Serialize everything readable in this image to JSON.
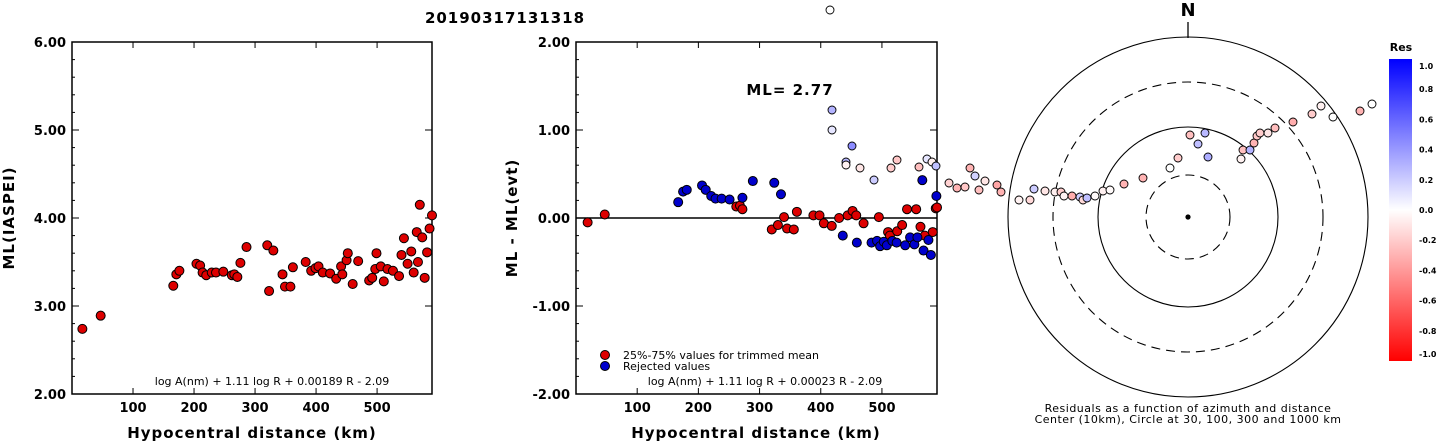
{
  "page_title": "20190317131318",
  "colors": {
    "accepted": "#dd0000",
    "rejected": "#0000cc",
    "outline": "#000000"
  },
  "chart_data": [
    {
      "type": "scatter",
      "xlabel": "Hypocentral distance (km)",
      "ylabel": "ML(IASPEI)",
      "xlim": [
        0,
        590
      ],
      "ylim": [
        2.0,
        6.0
      ],
      "xticks": [
        100,
        200,
        300,
        400,
        500
      ],
      "yticks": [
        "2.00",
        "3.00",
        "4.00",
        "5.00",
        "6.00"
      ],
      "ytick_values": [
        2,
        3,
        4,
        5,
        6
      ],
      "formula": "log A(nm) + 1.11 log R + 0.00189 R - 2.09",
      "points": [
        [
          17,
          2.74
        ],
        [
          47,
          2.89
        ],
        [
          166,
          3.23
        ],
        [
          171,
          3.36
        ],
        [
          176,
          3.4
        ],
        [
          204,
          3.48
        ],
        [
          210,
          3.46
        ],
        [
          214,
          3.38
        ],
        [
          220,
          3.35
        ],
        [
          229,
          3.38
        ],
        [
          236,
          3.38
        ],
        [
          248,
          3.39
        ],
        [
          262,
          3.35
        ],
        [
          266,
          3.36
        ],
        [
          271,
          3.33
        ],
        [
          276,
          3.49
        ],
        [
          286,
          3.67
        ],
        [
          320,
          3.69
        ],
        [
          323,
          3.17
        ],
        [
          330,
          3.63
        ],
        [
          345,
          3.36
        ],
        [
          349,
          3.22
        ],
        [
          358,
          3.22
        ],
        [
          362,
          3.44
        ],
        [
          383,
          3.5
        ],
        [
          392,
          3.4
        ],
        [
          399,
          3.43
        ],
        [
          404,
          3.45
        ],
        [
          411,
          3.38
        ],
        [
          423,
          3.37
        ],
        [
          433,
          3.31
        ],
        [
          441,
          3.45
        ],
        [
          443,
          3.36
        ],
        [
          450,
          3.52
        ],
        [
          452,
          3.6
        ],
        [
          460,
          3.25
        ],
        [
          469,
          3.51
        ],
        [
          487,
          3.29
        ],
        [
          492,
          3.32
        ],
        [
          497,
          3.42
        ],
        [
          499,
          3.6
        ],
        [
          506,
          3.45
        ],
        [
          511,
          3.28
        ],
        [
          517,
          3.42
        ],
        [
          526,
          3.4
        ],
        [
          536,
          3.34
        ],
        [
          540,
          3.58
        ],
        [
          544,
          3.77
        ],
        [
          550,
          3.48
        ],
        [
          556,
          3.62
        ],
        [
          560,
          3.38
        ],
        [
          565,
          3.84
        ],
        [
          567,
          3.5
        ],
        [
          570,
          4.15
        ],
        [
          574,
          3.78
        ],
        [
          578,
          3.32
        ],
        [
          582,
          3.61
        ],
        [
          586,
          3.88
        ],
        [
          590,
          4.03
        ]
      ]
    },
    {
      "type": "scatter",
      "xlabel": "Hypocentral distance (km)",
      "ylabel": "ML - ML(evt)",
      "xlim": [
        0,
        590
      ],
      "ylim": [
        -2.0,
        2.0
      ],
      "xticks": [
        100,
        200,
        300,
        400,
        500
      ],
      "yticks": [
        "-2.00",
        "-1.00",
        "0.00",
        "1.00",
        "2.00"
      ],
      "ytick_values": [
        -2,
        -1,
        0,
        1,
        2
      ],
      "ml_label": "ML= 2.77",
      "formula": "log A(nm) + 1.11 log R + 0.00023 R - 2.09",
      "legend": [
        "25%-75% values for trimmed mean",
        "Rejected values"
      ],
      "accepted": [
        [
          19,
          -0.05
        ],
        [
          47,
          0.04
        ],
        [
          262,
          0.13
        ],
        [
          268,
          0.14
        ],
        [
          272,
          0.1
        ],
        [
          320,
          -0.13
        ],
        [
          330,
          -0.08
        ],
        [
          340,
          0.01
        ],
        [
          345,
          -0.12
        ],
        [
          356,
          -0.13
        ],
        [
          361,
          0.07
        ],
        [
          388,
          0.03
        ],
        [
          398,
          0.03
        ],
        [
          405,
          -0.06
        ],
        [
          418,
          -0.09
        ],
        [
          430,
          0.0
        ],
        [
          444,
          0.03
        ],
        [
          452,
          0.08
        ],
        [
          458,
          0.03
        ],
        [
          470,
          -0.06
        ],
        [
          495,
          0.01
        ],
        [
          510,
          -0.16
        ],
        [
          513,
          -0.2
        ],
        [
          525,
          -0.15
        ],
        [
          533,
          -0.08
        ],
        [
          541,
          0.1
        ],
        [
          556,
          0.1
        ],
        [
          563,
          -0.1
        ],
        [
          570,
          -0.2
        ],
        [
          583,
          -0.16
        ],
        [
          588,
          0.11
        ],
        [
          590,
          0.12
        ]
      ],
      "rejected": [
        [
          167,
          0.18
        ],
        [
          175,
          0.3
        ],
        [
          181,
          0.32
        ],
        [
          206,
          0.37
        ],
        [
          212,
          0.32
        ],
        [
          221,
          0.25
        ],
        [
          228,
          0.22
        ],
        [
          238,
          0.22
        ],
        [
          251,
          0.21
        ],
        [
          272,
          0.23
        ],
        [
          289,
          0.42
        ],
        [
          324,
          0.4
        ],
        [
          335,
          0.27
        ],
        [
          436,
          -0.2
        ],
        [
          459,
          -0.28
        ],
        [
          483,
          -0.28
        ],
        [
          492,
          -0.26
        ],
        [
          497,
          -0.32
        ],
        [
          503,
          -0.27
        ],
        [
          508,
          -0.31
        ],
        [
          517,
          -0.26
        ],
        [
          524,
          -0.28
        ],
        [
          538,
          -0.31
        ],
        [
          546,
          -0.22
        ],
        [
          553,
          -0.3
        ],
        [
          558,
          -0.22
        ],
        [
          566,
          0.43
        ],
        [
          568,
          -0.37
        ],
        [
          576,
          -0.25
        ],
        [
          580,
          -0.42
        ],
        [
          589,
          0.25
        ]
      ]
    },
    {
      "type": "polar_scatter",
      "north_label": "N",
      "caption": [
        "Residuals as a function of azimuth and distance",
        "Center (10km), Circle at 30, 100, 300 and 1000 km"
      ],
      "colorbar_title": "Res",
      "colorbar_ticks": [
        "1.0",
        "0.8",
        "0.6",
        "0.4",
        "0.2",
        "0.0",
        "-0.2",
        "-0.4",
        "-0.6",
        "-0.8",
        "-1.0"
      ],
      "colorbar_tick_values": [
        1.0,
        0.8,
        0.6,
        0.4,
        0.2,
        0.0,
        -0.2,
        -0.4,
        -0.6,
        -0.8,
        -1.0
      ],
      "colormap": {
        "positive": "#0000ff",
        "zero": "#ffffff",
        "negative": "#ff0000"
      },
      "ring_distances_km": [
        30,
        100,
        300,
        1000
      ],
      "ring_styles": [
        "dashed",
        "solid",
        "dashed",
        "solid"
      ],
      "points": [
        [
          155,
          47,
          0.02
        ],
        [
          169,
          36,
          -0.02
        ],
        [
          330,
          110,
          0.0
        ],
        [
          332,
          210,
          0.3
        ],
        [
          332,
          230,
          0.1
        ],
        [
          346,
          262,
          0.28
        ],
        [
          346,
          265,
          -0.05
        ],
        [
          352,
          246,
          0.45
        ],
        [
          360,
          268,
          -0.1
        ],
        [
          374,
          280,
          0.2
        ],
        [
          391,
          268,
          -0.2
        ],
        [
          397,
          260,
          -0.22
        ],
        [
          419,
          267,
          -0.25
        ],
        [
          427,
          259,
          0.1
        ],
        [
          432,
          262,
          -0.06
        ],
        [
          436,
          266,
          0.25
        ],
        [
          449,
          283,
          -0.18
        ],
        [
          457,
          288,
          -0.3
        ],
        [
          465,
          287,
          -0.22
        ],
        [
          470,
          268,
          -0.3
        ],
        [
          475,
          276,
          0.18
        ],
        [
          479,
          290,
          -0.25
        ],
        [
          485,
          281,
          -0.1
        ],
        [
          497,
          285,
          -0.35
        ],
        [
          501,
          292,
          -0.3
        ],
        [
          519,
          300,
          -0.05
        ],
        [
          530,
          300,
          -0.15
        ],
        [
          534,
          289,
          0.2
        ],
        [
          545,
          291,
          -0.1
        ],
        [
          555,
          292,
          -0.06
        ],
        [
          561,
          292,
          -0.2
        ],
        [
          564,
          296,
          -0.05
        ],
        [
          572,
          296,
          -0.32
        ],
        [
          580,
          297,
          0.2
        ],
        [
          583,
          300,
          -0.15
        ],
        [
          587,
          298,
          0.25
        ],
        [
          595,
          296,
          -0.02
        ],
        [
          603,
          291,
          -0.06
        ],
        [
          610,
          290,
          -0.02
        ],
        [
          624,
          284,
          -0.3
        ],
        [
          643,
          278,
          -0.3
        ],
        [
          670,
          268,
          0.0
        ],
        [
          678,
          258,
          -0.2
        ],
        [
          690,
          235,
          -0.25
        ],
        [
          698,
          244,
          0.25
        ],
        [
          705,
          233,
          0.28
        ],
        [
          708,
          257,
          0.32
        ],
        [
          741,
          259,
          -0.05
        ],
        [
          743,
          250,
          -0.25
        ],
        [
          750,
          250,
          0.3
        ],
        [
          754,
          243,
          -0.3
        ],
        [
          757,
          236,
          -0.22
        ],
        [
          760,
          233,
          -0.2
        ],
        [
          768,
          233,
          -0.1
        ],
        [
          775,
          228,
          -0.26
        ],
        [
          793,
          222,
          -0.32
        ],
        [
          812,
          214,
          -0.2
        ],
        [
          821,
          206,
          -0.06
        ],
        [
          833,
          217,
          0.0
        ],
        [
          860,
          211,
          -0.3
        ],
        [
          872,
          204,
          0.0
        ],
        [
          896,
          200,
          0.25
        ]
      ]
    }
  ]
}
